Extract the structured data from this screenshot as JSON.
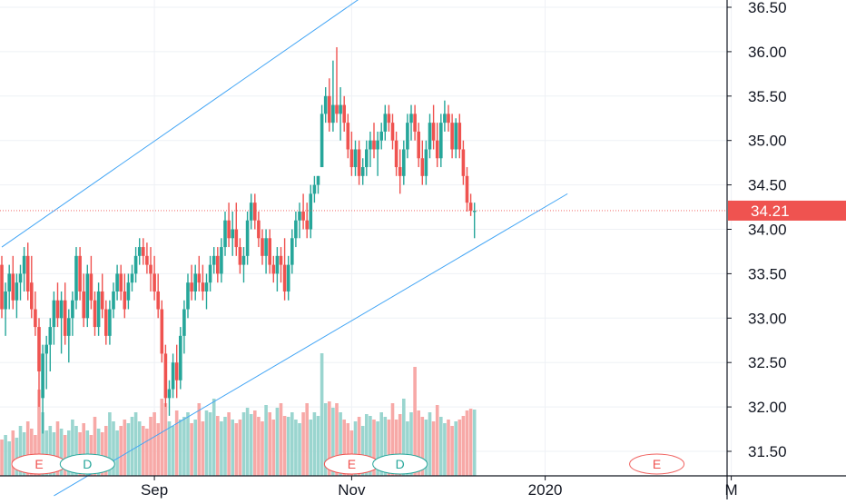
{
  "chart_data": {
    "type": "candlestick",
    "title": "",
    "last_price": "34.21",
    "last_price_value": 34.21,
    "y_ticks": [
      31.5,
      32.0,
      32.5,
      33.0,
      33.5,
      34.0,
      34.5,
      35.0,
      35.5,
      36.0,
      36.5
    ],
    "y_tick_labels": [
      "31.50",
      "32.00",
      "32.50",
      "33.00",
      "33.50",
      "34.00",
      "34.50",
      "35.00",
      "35.50",
      "36.00",
      "36.50"
    ],
    "x_ticks": [
      {
        "label": "Sep",
        "bar": 41
      },
      {
        "label": "Nov",
        "bar": 94
      },
      {
        "label": "2020",
        "bar": 146
      },
      {
        "label": "M",
        "bar": 196
      }
    ],
    "candles_ohlc": [
      [
        33.6,
        33.7,
        33.0,
        33.1
      ],
      [
        33.1,
        33.4,
        32.8,
        33.3
      ],
      [
        33.3,
        33.6,
        33.1,
        33.5
      ],
      [
        33.5,
        33.7,
        33.1,
        33.2
      ],
      [
        33.2,
        33.5,
        33.0,
        33.4
      ],
      [
        33.4,
        33.6,
        33.2,
        33.5
      ],
      [
        33.5,
        33.8,
        33.3,
        33.7
      ],
      [
        33.7,
        33.85,
        33.2,
        33.3
      ],
      [
        33.4,
        33.7,
        33.0,
        33.1
      ],
      [
        33.1,
        33.3,
        32.8,
        32.9
      ],
      [
        32.9,
        33.0,
        32.0,
        32.4
      ],
      [
        32.1,
        32.7,
        31.7,
        32.6
      ],
      [
        32.6,
        32.8,
        32.2,
        32.7
      ],
      [
        32.7,
        33.0,
        32.4,
        32.9
      ],
      [
        32.9,
        33.3,
        32.7,
        33.2
      ],
      [
        33.2,
        33.4,
        32.9,
        33.0
      ],
      [
        33.0,
        33.3,
        32.6,
        33.2
      ],
      [
        33.2,
        33.4,
        32.7,
        32.8
      ],
      [
        32.8,
        33.1,
        32.5,
        33.0
      ],
      [
        33.0,
        33.3,
        32.8,
        33.2
      ],
      [
        33.2,
        33.8,
        33.1,
        33.7
      ],
      [
        33.7,
        33.8,
        33.2,
        33.3
      ],
      [
        33.3,
        33.5,
        32.9,
        33.0
      ],
      [
        33.0,
        33.6,
        32.9,
        33.5
      ],
      [
        33.5,
        33.7,
        33.1,
        33.2
      ],
      [
        33.2,
        33.3,
        32.8,
        32.9
      ],
      [
        32.9,
        33.4,
        32.8,
        33.3
      ],
      [
        33.3,
        33.5,
        33.0,
        33.1
      ],
      [
        33.1,
        33.2,
        32.7,
        32.8
      ],
      [
        32.8,
        33.2,
        32.7,
        33.1
      ],
      [
        33.1,
        33.4,
        33.0,
        33.3
      ],
      [
        33.3,
        33.6,
        33.2,
        33.5
      ],
      [
        33.5,
        33.6,
        33.2,
        33.3
      ],
      [
        33.3,
        33.5,
        33.0,
        33.1
      ],
      [
        33.2,
        33.5,
        33.1,
        33.4
      ],
      [
        33.4,
        33.6,
        33.3,
        33.5
      ],
      [
        33.5,
        33.8,
        33.4,
        33.7
      ],
      [
        33.7,
        33.9,
        33.6,
        33.8
      ],
      [
        33.8,
        33.9,
        33.6,
        33.7
      ],
      [
        33.7,
        33.85,
        33.5,
        33.6
      ],
      [
        33.6,
        33.8,
        33.3,
        33.5
      ],
      [
        33.5,
        33.7,
        33.2,
        33.3
      ],
      [
        33.3,
        33.5,
        33.0,
        33.1
      ],
      [
        33.1,
        33.2,
        32.5,
        32.6
      ],
      [
        32.6,
        32.7,
        32.0,
        32.1
      ],
      [
        32.1,
        32.3,
        31.9,
        32.2
      ],
      [
        32.2,
        32.6,
        32.1,
        32.5
      ],
      [
        32.5,
        32.7,
        32.1,
        32.3
      ],
      [
        32.3,
        32.9,
        32.2,
        32.8
      ],
      [
        32.8,
        33.2,
        32.6,
        33.1
      ],
      [
        33.1,
        33.5,
        33.0,
        33.4
      ],
      [
        33.4,
        33.6,
        33.2,
        33.3
      ],
      [
        33.3,
        33.6,
        33.2,
        33.5
      ],
      [
        33.5,
        33.7,
        33.3,
        33.4
      ],
      [
        33.4,
        33.6,
        33.2,
        33.3
      ],
      [
        33.3,
        33.5,
        33.1,
        33.4
      ],
      [
        33.4,
        33.7,
        33.3,
        33.6
      ],
      [
        33.6,
        33.8,
        33.5,
        33.7
      ],
      [
        33.7,
        33.8,
        33.4,
        33.5
      ],
      [
        33.5,
        33.9,
        33.4,
        33.8
      ],
      [
        33.8,
        34.2,
        33.7,
        34.1
      ],
      [
        34.1,
        34.3,
        33.8,
        33.9
      ],
      [
        33.9,
        34.2,
        33.7,
        34.0
      ],
      [
        34.0,
        34.3,
        33.7,
        33.8
      ],
      [
        33.8,
        33.9,
        33.5,
        33.6
      ],
      [
        33.6,
        33.8,
        33.4,
        33.7
      ],
      [
        33.7,
        34.2,
        33.6,
        34.1
      ],
      [
        34.1,
        34.4,
        34.0,
        34.3
      ],
      [
        34.3,
        34.4,
        34.0,
        34.1
      ],
      [
        34.1,
        34.2,
        33.8,
        33.9
      ],
      [
        33.9,
        34.0,
        33.6,
        33.7
      ],
      [
        33.7,
        34.0,
        33.5,
        33.9
      ],
      [
        33.9,
        34.0,
        33.5,
        33.6
      ],
      [
        33.6,
        33.7,
        33.4,
        33.5
      ],
      [
        33.5,
        33.8,
        33.3,
        33.7
      ],
      [
        33.7,
        33.8,
        33.4,
        33.6
      ],
      [
        33.6,
        33.9,
        33.2,
        33.3
      ],
      [
        33.3,
        33.7,
        33.2,
        33.6
      ],
      [
        33.6,
        34.0,
        33.5,
        33.9
      ],
      [
        33.9,
        34.2,
        33.8,
        34.1
      ],
      [
        34.1,
        34.3,
        33.9,
        34.2
      ],
      [
        34.2,
        34.4,
        34.0,
        34.1
      ],
      [
        34.1,
        34.3,
        33.9,
        34.0
      ],
      [
        34.0,
        34.5,
        33.9,
        34.4
      ],
      [
        34.4,
        34.6,
        34.3,
        34.5
      ],
      [
        34.5,
        34.6,
        34.4,
        34.6
      ],
      [
        34.7,
        35.4,
        34.7,
        35.3
      ],
      [
        35.3,
        35.6,
        35.2,
        35.5
      ],
      [
        35.5,
        35.7,
        35.1,
        35.2
      ],
      [
        35.2,
        35.9,
        35.1,
        35.4
      ],
      [
        35.4,
        36.05,
        35.2,
        35.3
      ],
      [
        35.3,
        35.6,
        35.0,
        35.4
      ],
      [
        35.4,
        35.5,
        35.1,
        35.2
      ],
      [
        35.2,
        35.3,
        34.8,
        34.9
      ],
      [
        34.9,
        35.1,
        34.6,
        34.7
      ],
      [
        34.7,
        35.0,
        34.6,
        34.9
      ],
      [
        34.9,
        35.0,
        34.5,
        34.6
      ],
      [
        34.6,
        34.8,
        34.5,
        34.7
      ],
      [
        34.7,
        35.0,
        34.6,
        34.9
      ],
      [
        34.9,
        35.1,
        34.7,
        35.0
      ],
      [
        35.0,
        35.2,
        34.8,
        34.9
      ],
      [
        34.9,
        35.1,
        34.6,
        35.0
      ],
      [
        35.0,
        35.2,
        34.9,
        35.1
      ],
      [
        35.1,
        35.4,
        35.0,
        35.3
      ],
      [
        35.3,
        35.4,
        35.1,
        35.2
      ],
      [
        35.2,
        35.3,
        34.9,
        35.0
      ],
      [
        35.0,
        35.1,
        34.6,
        34.7
      ],
      [
        34.7,
        34.9,
        34.4,
        34.6
      ],
      [
        34.6,
        35.0,
        34.5,
        34.9
      ],
      [
        34.9,
        35.3,
        34.8,
        35.2
      ],
      [
        35.2,
        35.4,
        35.0,
        35.3
      ],
      [
        35.3,
        35.4,
        35.0,
        35.1
      ],
      [
        35.1,
        35.2,
        34.7,
        34.8
      ],
      [
        34.8,
        35.0,
        34.5,
        34.6
      ],
      [
        34.6,
        35.0,
        34.5,
        34.9
      ],
      [
        34.9,
        35.3,
        34.8,
        35.2
      ],
      [
        35.2,
        35.4,
        34.9,
        35.0
      ],
      [
        35.0,
        35.2,
        34.7,
        34.8
      ],
      [
        34.8,
        35.3,
        34.7,
        35.2
      ],
      [
        35.2,
        35.45,
        35.1,
        35.3
      ],
      [
        35.3,
        35.4,
        35.1,
        35.2
      ],
      [
        35.2,
        35.3,
        34.8,
        34.9
      ],
      [
        34.9,
        35.25,
        34.8,
        35.2
      ],
      [
        35.2,
        35.3,
        34.8,
        34.9
      ],
      [
        34.9,
        35.0,
        34.5,
        34.6
      ],
      [
        34.6,
        34.7,
        34.2,
        34.3
      ],
      [
        34.3,
        34.4,
        34.15,
        34.21
      ],
      [
        34.21,
        34.3,
        33.9,
        34.21
      ]
    ],
    "volume_rel": [
      0.4,
      0.45,
      0.38,
      0.5,
      0.42,
      0.55,
      0.48,
      0.6,
      0.52,
      0.45,
      0.95,
      0.7,
      0.5,
      0.55,
      0.48,
      0.6,
      0.52,
      0.45,
      0.5,
      0.62,
      0.55,
      0.48,
      0.58,
      0.5,
      0.45,
      0.65,
      0.52,
      0.48,
      0.55,
      0.7,
      0.6,
      0.5,
      0.55,
      0.62,
      0.58,
      0.65,
      0.7,
      0.6,
      0.55,
      0.52,
      0.65,
      0.7,
      0.58,
      0.85,
      0.8,
      0.6,
      0.55,
      0.72,
      0.62,
      0.65,
      0.7,
      0.58,
      0.62,
      0.8,
      0.6,
      0.72,
      0.7,
      0.85,
      0.66,
      0.6,
      0.65,
      0.7,
      0.62,
      0.58,
      0.62,
      0.7,
      0.75,
      0.68,
      0.72,
      0.65,
      0.6,
      0.78,
      0.7,
      0.62,
      0.75,
      0.8,
      0.66,
      0.65,
      0.7,
      0.62,
      0.58,
      0.7,
      0.8,
      0.62,
      0.7,
      0.66,
      1.35,
      0.8,
      0.82,
      0.75,
      0.8,
      0.7,
      0.62,
      0.58,
      0.5,
      0.6,
      0.65,
      0.55,
      0.68,
      0.66,
      0.62,
      0.6,
      0.7,
      0.65,
      0.62,
      0.8,
      0.62,
      0.68,
      0.85,
      0.6,
      0.7,
      1.2,
      0.72,
      0.65,
      0.62,
      0.7,
      0.6,
      0.78,
      0.65,
      0.58,
      0.62,
      0.55,
      0.6,
      0.62,
      0.66,
      0.72,
      0.74,
      0.73
    ],
    "channel": {
      "upper": {
        "from": {
          "bar": 0,
          "price": 33.8
        },
        "to": {
          "bar": 110,
          "price": 37.0
        }
      },
      "lower": {
        "from": {
          "bar": 14,
          "price": 31.0
        },
        "to": {
          "bar": 152,
          "price": 34.4
        }
      }
    },
    "events": [
      {
        "label": "E",
        "bar": 10,
        "kind": "earnings"
      },
      {
        "label": "D",
        "bar": 23,
        "kind": "dividend"
      },
      {
        "label": "E",
        "bar": 94,
        "kind": "earnings"
      },
      {
        "label": "D",
        "bar": 107,
        "kind": "dividend"
      },
      {
        "label": "E",
        "bar": 176,
        "kind": "earnings-future"
      }
    ],
    "colors": {
      "up": "#26a69a",
      "down": "#ef5350",
      "up_volume": "#9ad5cf",
      "down_volume": "#f7a9a7",
      "channel": "#42a5f5",
      "grid": "#eef1f5",
      "axis": "#131722",
      "text": "#131722",
      "price_label_bg": "#ef5350"
    }
  }
}
